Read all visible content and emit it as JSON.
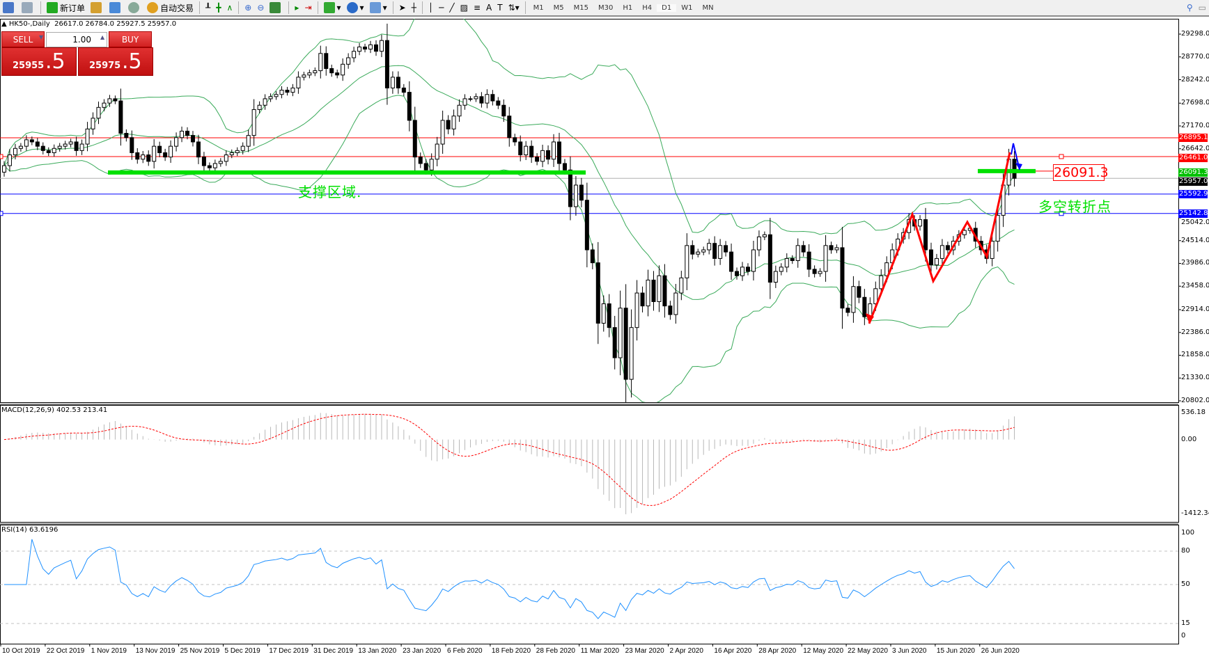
{
  "toolbar": {
    "new_order": "新订单",
    "auto_trade": "自动交易",
    "timeframes": [
      "M1",
      "M5",
      "M15",
      "M30",
      "H1",
      "H4",
      "D1",
      "W1",
      "MN"
    ],
    "active_timeframe": "D1"
  },
  "chart_header": {
    "symbol": "HK50-,Daily",
    "ohlc": "26617.0 26784.0 25927.5 25957.0"
  },
  "trade_panel": {
    "sell_label": "SELL",
    "buy_label": "BUY",
    "lot": "1.00",
    "sell_main": "25955",
    "sell_frac": ".5",
    "buy_main": "25975",
    "buy_frac": ".5"
  },
  "price_axis": [
    "29298.0",
    "28770.0",
    "28242.0",
    "27698.0",
    "27170.0",
    "26642.0",
    "25042.0",
    "24514.0",
    "23986.0",
    "23458.0",
    "22914.0",
    "22386.0",
    "21858.0",
    "21330.0",
    "20802.0"
  ],
  "levels": [
    {
      "value": "26895.1",
      "color": "#ff0000"
    },
    {
      "value": "26461.0",
      "color": "#ff0000"
    },
    {
      "value": "26091.3",
      "color": "#00c000"
    },
    {
      "value": "25957.0",
      "color": "#000000"
    },
    {
      "value": "25592.9",
      "color": "#0000ff"
    },
    {
      "value": "25142.8",
      "color": "#0000ff"
    }
  ],
  "annotations": {
    "support_zone": "支撑区域.",
    "pivot": "多空转折点",
    "price_box": "26091.3"
  },
  "macd": {
    "label": "MACD(12,26,9) 402.53 213.41",
    "axis": [
      "536.18",
      "0.00",
      "-1412.34"
    ]
  },
  "rsi": {
    "label": "RSI(14) 63.6196",
    "axis": [
      "100",
      "80",
      "50",
      "15",
      "0"
    ]
  },
  "chart_data": {
    "type": "candlestick",
    "symbol": "HK50-",
    "timeframe": "Daily",
    "ylim": [
      20802,
      29298
    ],
    "x_tick_labels": [
      "10 Oct 2019",
      "22 Oct 2019",
      "1 Nov 2019",
      "13 Nov 2019",
      "25 Nov 2019",
      "5 Dec 2019",
      "17 Dec 2019",
      "31 Dec 2019",
      "13 Jan 2020",
      "23 Jan 2020",
      "6 Feb 2020",
      "18 Feb 2020",
      "28 Feb 2020",
      "11 Mar 2020",
      "23 Mar 2020",
      "2 Apr 2020",
      "16 Apr 2020",
      "28 Apr 2020",
      "12 May 2020",
      "22 May 2020",
      "3 Jun 2020",
      "15 Jun 2020",
      "26 Jun 2020"
    ],
    "closes": [
      26250,
      26500,
      26650,
      26700,
      26850,
      26800,
      26700,
      26600,
      26550,
      26650,
      26700,
      26750,
      26800,
      26600,
      26750,
      27100,
      27350,
      27600,
      27700,
      27800,
      27750,
      27000,
      26900,
      26550,
      26400,
      26500,
      26350,
      26700,
      26550,
      26450,
      26700,
      26900,
      27050,
      26950,
      26800,
      26450,
      26250,
      26200,
      26300,
      26350,
      26500,
      26550,
      26600,
      26700,
      26950,
      27550,
      27650,
      27800,
      27850,
      27900,
      28000,
      27950,
      28050,
      28300,
      28350,
      28400,
      28450,
      28850,
      28500,
      28400,
      28350,
      28600,
      28750,
      28900,
      29000,
      28950,
      29050,
      28900,
      29150,
      28050,
      28300,
      28050,
      27950,
      27300,
      26450,
      26300,
      26150,
      26400,
      26750,
      27300,
      27100,
      27400,
      27650,
      27800,
      27800,
      27850,
      27700,
      27900,
      27750,
      27650,
      27400,
      26900,
      26800,
      26500,
      26700,
      26450,
      26350,
      26600,
      26400,
      26800,
      26300,
      26150,
      25300,
      25800,
      25450,
      24300,
      24000,
      22600,
      23050,
      22500,
      21800,
      22950,
      21300,
      22500,
      23300,
      23000,
      23600,
      23100,
      23700,
      23000,
      22800,
      23300,
      23650,
      24400,
      24200,
      24250,
      24300,
      24450,
      24100,
      24400,
      24250,
      23800,
      23700,
      23900,
      23800,
      24300,
      24600,
      24650,
      23550,
      23800,
      23900,
      24100,
      24050,
      24400,
      24250,
      23850,
      23750,
      23800,
      24400,
      24300,
      24350,
      22950,
      22850,
      23450,
      23200,
      22750,
      23050,
      23400,
      23700,
      24000,
      24300,
      24550,
      24700,
      25000,
      24850,
      25000,
      24300,
      23950,
      24100,
      24400,
      24300,
      24500,
      24650,
      24750,
      24800,
      24500,
      24300,
      24100,
      24500,
      25100,
      25800,
      26400,
      25957
    ],
    "indicators": [
      "Bollinger Bands",
      "MACD(12,26,9)",
      "RSI(14)"
    ]
  }
}
